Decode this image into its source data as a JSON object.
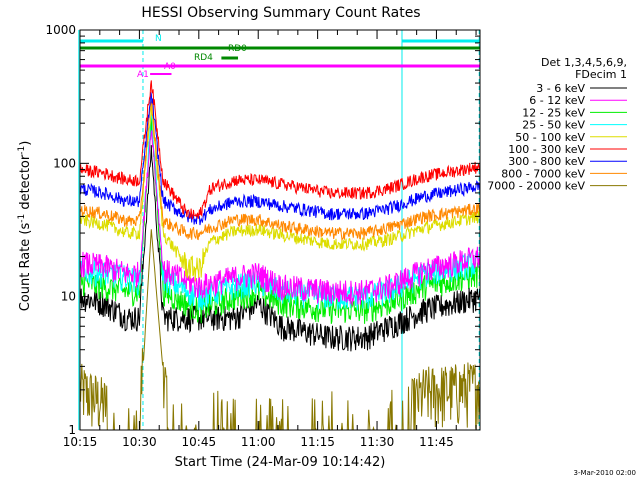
{
  "chart_data": {
    "type": "line",
    "title": "HESSI Observing Summary Count Rates",
    "xlabel": "Start Time (24-Mar-09 10:14:42)",
    "ylabel_main": "Count Rate (s",
    "ylabel_sup1": "-1",
    "ylabel_mid": " detector",
    "ylabel_sup2": "-1",
    "ylabel_end": ")",
    "xlim": [
      10.25,
      11.9333
    ],
    "ylim": [
      1,
      1000
    ],
    "yscale": "log",
    "x_ticks": [
      {
        "v": 10.25,
        "label": "10:15"
      },
      {
        "v": 10.5,
        "label": "10:30"
      },
      {
        "v": 10.75,
        "label": "10:45"
      },
      {
        "v": 11.0,
        "label": "11:00"
      },
      {
        "v": 11.25,
        "label": "11:15"
      },
      {
        "v": 11.5,
        "label": "11:30"
      },
      {
        "v": 11.75,
        "label": "11:45"
      }
    ],
    "y_ticks": [
      {
        "v": 1,
        "label": "1"
      },
      {
        "v": 10,
        "label": "10"
      },
      {
        "v": 100,
        "label": "100"
      },
      {
        "v": 1000,
        "label": "1000"
      }
    ],
    "legend": {
      "title1": "Det 1,3,4,5,6,9,",
      "title2": "FDecim 1",
      "entries": [
        "3 - 6 keV",
        "6 - 12 keV",
        "12 - 25 keV",
        "25 - 50 keV",
        "50 - 100 keV",
        "100 - 300 keV",
        "300 - 800 keV",
        "800 - 7000 keV",
        "7000 - 20000 keV"
      ]
    },
    "colors": [
      "#000000",
      "#ff00ff",
      "#00ee00",
      "#00ffff",
      "#dddd00",
      "#ff0000",
      "#0000ff",
      "#ff8800",
      "#887700"
    ],
    "series": [
      {
        "name": "3 - 6 keV",
        "values": [
          [
            10.25,
            10
          ],
          [
            10.35,
            9
          ],
          [
            10.45,
            7
          ],
          [
            10.5,
            7
          ],
          [
            10.55,
            130
          ],
          [
            10.6,
            7
          ],
          [
            10.75,
            7
          ],
          [
            10.9,
            7
          ],
          [
            11.0,
            9
          ],
          [
            11.1,
            6
          ],
          [
            11.3,
            5
          ],
          [
            11.45,
            5
          ],
          [
            11.55,
            6
          ],
          [
            11.7,
            8
          ],
          [
            11.9333,
            10
          ]
        ]
      },
      {
        "name": "6 - 12 keV",
        "values": [
          [
            10.25,
            18
          ],
          [
            10.35,
            17
          ],
          [
            10.45,
            15
          ],
          [
            10.5,
            15
          ],
          [
            10.55,
            190
          ],
          [
            10.6,
            16
          ],
          [
            10.75,
            12
          ],
          [
            10.9,
            14
          ],
          [
            11.0,
            15
          ],
          [
            11.1,
            12
          ],
          [
            11.3,
            11
          ],
          [
            11.45,
            11
          ],
          [
            11.55,
            12
          ],
          [
            11.7,
            16
          ],
          [
            11.9333,
            20
          ]
        ]
      },
      {
        "name": "12 - 25 keV",
        "values": [
          [
            10.25,
            13
          ],
          [
            10.35,
            12
          ],
          [
            10.45,
            11
          ],
          [
            10.5,
            11
          ],
          [
            10.55,
            210
          ],
          [
            10.6,
            11
          ],
          [
            10.75,
            8
          ],
          [
            10.9,
            10
          ],
          [
            11.0,
            11
          ],
          [
            11.1,
            9
          ],
          [
            11.3,
            8
          ],
          [
            11.45,
            8
          ],
          [
            11.55,
            9
          ],
          [
            11.7,
            12
          ],
          [
            11.9333,
            15
          ]
        ]
      },
      {
        "name": "25 - 50 keV",
        "values": [
          [
            10.25,
            16
          ],
          [
            10.35,
            15
          ],
          [
            10.45,
            14
          ],
          [
            10.5,
            13
          ],
          [
            10.55,
            240
          ],
          [
            10.6,
            14
          ],
          [
            10.75,
            10
          ],
          [
            10.9,
            12
          ],
          [
            11.0,
            13
          ],
          [
            11.1,
            11
          ],
          [
            11.3,
            10
          ],
          [
            11.45,
            10
          ],
          [
            11.55,
            11
          ],
          [
            11.7,
            15
          ],
          [
            11.9333,
            18
          ]
        ]
      },
      {
        "name": "50 - 100 keV",
        "values": [
          [
            10.25,
            38
          ],
          [
            10.35,
            35
          ],
          [
            10.45,
            30
          ],
          [
            10.5,
            30
          ],
          [
            10.55,
            270
          ],
          [
            10.6,
            30
          ],
          [
            10.7,
            17
          ],
          [
            10.75,
            16
          ],
          [
            10.8,
            26
          ],
          [
            10.9,
            31
          ],
          [
            11.0,
            32
          ],
          [
            11.1,
            29
          ],
          [
            11.3,
            25
          ],
          [
            11.45,
            25
          ],
          [
            11.55,
            27
          ],
          [
            11.7,
            33
          ],
          [
            11.9333,
            40
          ]
        ]
      },
      {
        "name": "100 - 300 keV",
        "values": [
          [
            10.25,
            90
          ],
          [
            10.35,
            85
          ],
          [
            10.45,
            75
          ],
          [
            10.5,
            75
          ],
          [
            10.55,
            420
          ],
          [
            10.6,
            75
          ],
          [
            10.7,
            42
          ],
          [
            10.75,
            40
          ],
          [
            10.8,
            65
          ],
          [
            10.9,
            75
          ],
          [
            11.0,
            75
          ],
          [
            11.1,
            70
          ],
          [
            11.3,
            60
          ],
          [
            11.45,
            60
          ],
          [
            11.55,
            65
          ],
          [
            11.7,
            80
          ],
          [
            11.9333,
            95
          ]
        ]
      },
      {
        "name": "300 - 800 keV",
        "values": [
          [
            10.25,
            65
          ],
          [
            10.35,
            60
          ],
          [
            10.45,
            52
          ],
          [
            10.5,
            52
          ],
          [
            10.55,
            340
          ],
          [
            10.6,
            52
          ],
          [
            10.7,
            40
          ],
          [
            10.75,
            38
          ],
          [
            10.8,
            45
          ],
          [
            10.9,
            52
          ],
          [
            11.0,
            52
          ],
          [
            11.1,
            48
          ],
          [
            11.3,
            42
          ],
          [
            11.45,
            42
          ],
          [
            11.55,
            46
          ],
          [
            11.7,
            57
          ],
          [
            11.9333,
            68
          ]
        ]
      },
      {
        "name": "800 - 7000 keV",
        "values": [
          [
            10.25,
            45
          ],
          [
            10.35,
            42
          ],
          [
            10.45,
            37
          ],
          [
            10.5,
            37
          ],
          [
            10.55,
            300
          ],
          [
            10.6,
            37
          ],
          [
            10.7,
            30
          ],
          [
            10.75,
            30
          ],
          [
            10.8,
            33
          ],
          [
            10.9,
            38
          ],
          [
            11.0,
            38
          ],
          [
            11.1,
            34
          ],
          [
            11.3,
            30
          ],
          [
            11.45,
            30
          ],
          [
            11.55,
            33
          ],
          [
            11.7,
            40
          ],
          [
            11.9333,
            46
          ]
        ]
      },
      {
        "name": "7000 - 20000 keV",
        "values": [
          [
            10.25,
            1.6
          ],
          [
            10.33,
            1.3
          ],
          [
            10.44,
            1
          ],
          [
            10.5,
            1
          ],
          [
            10.55,
            32
          ],
          [
            10.62,
            1
          ],
          [
            11.3,
            1
          ],
          [
            11.6,
            1
          ],
          [
            11.7,
            1.5
          ],
          [
            11.85,
            1.6
          ],
          [
            11.9333,
            1.7
          ]
        ]
      }
    ],
    "annotations": {
      "n": "N",
      "rd0": "RD0",
      "rd4": "RD4",
      "a0": "A0",
      "a1": "A1"
    },
    "footer": "3-Mar-2010 02:00"
  }
}
